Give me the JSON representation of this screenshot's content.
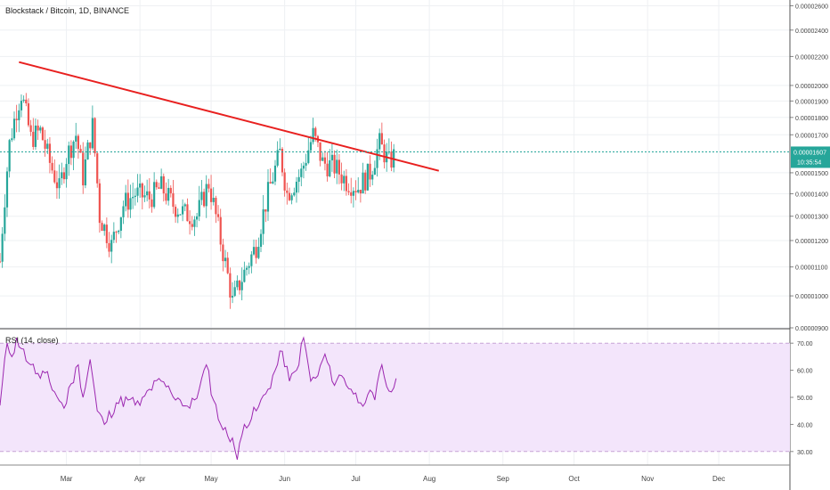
{
  "symbol_title": "Blockstack / Bitcoin, 1D, BINANCE",
  "rsi_title": "RSI (14, close)",
  "colors": {
    "up": "#26a69a",
    "down": "#ef5350",
    "trendline": "#e8201f",
    "price_line": "#26a69a",
    "rsi_line": "#9c27b0",
    "rsi_band": "#f3e5fb"
  },
  "chart_data": [
    {
      "type": "candlestick",
      "title": "Blockstack / Bitcoin, 1D, BINANCE",
      "y_scale": "log",
      "y_ticks": [
        "0.00002600",
        "0.00002400",
        "0.00002200",
        "0.00002000",
        "0.00001900",
        "0.00001800",
        "0.00001700",
        "0.00001500",
        "0.00001400",
        "0.00001300",
        "0.00001200",
        "0.00001100",
        "0.00001000",
        "0.00000900"
      ],
      "x_ticks": [
        "Mar",
        "Apr",
        "May",
        "Jun",
        "Jul",
        "Aug",
        "Sep",
        "Oct",
        "Nov",
        "Dec"
      ],
      "x_range": [
        "2019-02-01",
        "2019-12-31"
      ],
      "y_range": [
        9e-06,
        2.65e-05
      ],
      "last_price": "0.00001607",
      "countdown": "10:35:54",
      "approx_close_points": [
        [
          "2019-02-01",
          1.12e-05
        ],
        [
          "2019-02-05",
          1.65e-05
        ],
        [
          "2019-02-08",
          1.85e-05
        ],
        [
          "2019-02-10",
          1.95e-05
        ],
        [
          "2019-02-14",
          1.68e-05
        ],
        [
          "2019-02-18",
          1.72e-05
        ],
        [
          "2019-02-22",
          1.55e-05
        ],
        [
          "2019-02-26",
          1.42e-05
        ],
        [
          "2019-03-01",
          1.58e-05
        ],
        [
          "2019-03-05",
          1.7e-05
        ],
        [
          "2019-03-08",
          1.48e-05
        ],
        [
          "2019-03-12",
          1.75e-05
        ],
        [
          "2019-03-15",
          1.3e-05
        ],
        [
          "2019-03-20",
          1.18e-05
        ],
        [
          "2019-03-25",
          1.35e-05
        ],
        [
          "2019-03-30",
          1.4e-05
        ],
        [
          "2019-04-05",
          1.38e-05
        ],
        [
          "2019-04-10",
          1.43e-05
        ],
        [
          "2019-04-15",
          1.35e-05
        ],
        [
          "2019-04-20",
          1.31e-05
        ],
        [
          "2019-04-25",
          1.3e-05
        ],
        [
          "2019-04-30",
          1.45e-05
        ],
        [
          "2019-05-05",
          1.2e-05
        ],
        [
          "2019-05-10",
          9.8e-06
        ],
        [
          "2019-05-15",
          1.08e-05
        ],
        [
          "2019-05-20",
          1.18e-05
        ],
        [
          "2019-05-25",
          1.4e-05
        ],
        [
          "2019-05-30",
          1.6e-05
        ],
        [
          "2019-06-02",
          1.4e-05
        ],
        [
          "2019-06-08",
          1.5e-05
        ],
        [
          "2019-06-13",
          1.7e-05
        ],
        [
          "2019-06-17",
          1.55e-05
        ],
        [
          "2019-06-22",
          1.53e-05
        ],
        [
          "2019-06-27",
          1.46e-05
        ],
        [
          "2019-07-02",
          1.43e-05
        ],
        [
          "2019-07-07",
          1.5e-05
        ],
        [
          "2019-07-11",
          1.65e-05
        ],
        [
          "2019-07-15",
          1.55e-05
        ],
        [
          "2019-07-18",
          1.6e-05
        ]
      ],
      "trendline": {
        "start": [
          "2019-02-09",
          2.16e-05
        ],
        "end": [
          "2019-08-05",
          1.51e-05
        ]
      }
    },
    {
      "type": "line",
      "title": "RSI (14, close)",
      "y_ticks": [
        "70.00",
        "60.00",
        "50.00",
        "40.00",
        "30.00"
      ],
      "y_range": [
        25,
        75
      ],
      "band": [
        30,
        70
      ],
      "series": [
        {
          "name": "RSI (14, close)",
          "points": [
            [
              "2019-02-01",
              47
            ],
            [
              "2019-02-04",
              70
            ],
            [
              "2019-02-06",
              65
            ],
            [
              "2019-02-08",
              72
            ],
            [
              "2019-02-10",
              68
            ],
            [
              "2019-02-14",
              62
            ],
            [
              "2019-02-18",
              57
            ],
            [
              "2019-02-20",
              59
            ],
            [
              "2019-02-24",
              52
            ],
            [
              "2019-02-28",
              46
            ],
            [
              "2019-03-03",
              55
            ],
            [
              "2019-03-06",
              62
            ],
            [
              "2019-03-08",
              50
            ],
            [
              "2019-03-11",
              64
            ],
            [
              "2019-03-14",
              45
            ],
            [
              "2019-03-17",
              40
            ],
            [
              "2019-03-22",
              48
            ],
            [
              "2019-03-27",
              49
            ],
            [
              "2019-04-01",
              47
            ],
            [
              "2019-04-05",
              53
            ],
            [
              "2019-04-10",
              56
            ],
            [
              "2019-04-14",
              52
            ],
            [
              "2019-04-18",
              49
            ],
            [
              "2019-04-22",
              46
            ],
            [
              "2019-04-26",
              53
            ],
            [
              "2019-04-29",
              62
            ],
            [
              "2019-05-02",
              49
            ],
            [
              "2019-05-06",
              38
            ],
            [
              "2019-05-10",
              35
            ],
            [
              "2019-05-12",
              27
            ],
            [
              "2019-05-15",
              40
            ],
            [
              "2019-05-20",
              45
            ],
            [
              "2019-05-25",
              53
            ],
            [
              "2019-05-28",
              60
            ],
            [
              "2019-05-31",
              67
            ],
            [
              "2019-06-03",
              56
            ],
            [
              "2019-06-06",
              60
            ],
            [
              "2019-06-09",
              72
            ],
            [
              "2019-06-12",
              56
            ],
            [
              "2019-06-15",
              58
            ],
            [
              "2019-06-18",
              66
            ],
            [
              "2019-06-21",
              56
            ],
            [
              "2019-06-25",
              58
            ],
            [
              "2019-06-29",
              53
            ],
            [
              "2019-07-03",
              48
            ],
            [
              "2019-07-06",
              51
            ],
            [
              "2019-07-09",
              49
            ],
            [
              "2019-07-12",
              62
            ],
            [
              "2019-07-14",
              54
            ],
            [
              "2019-07-16",
              52
            ],
            [
              "2019-07-18",
              57
            ]
          ]
        }
      ]
    }
  ]
}
